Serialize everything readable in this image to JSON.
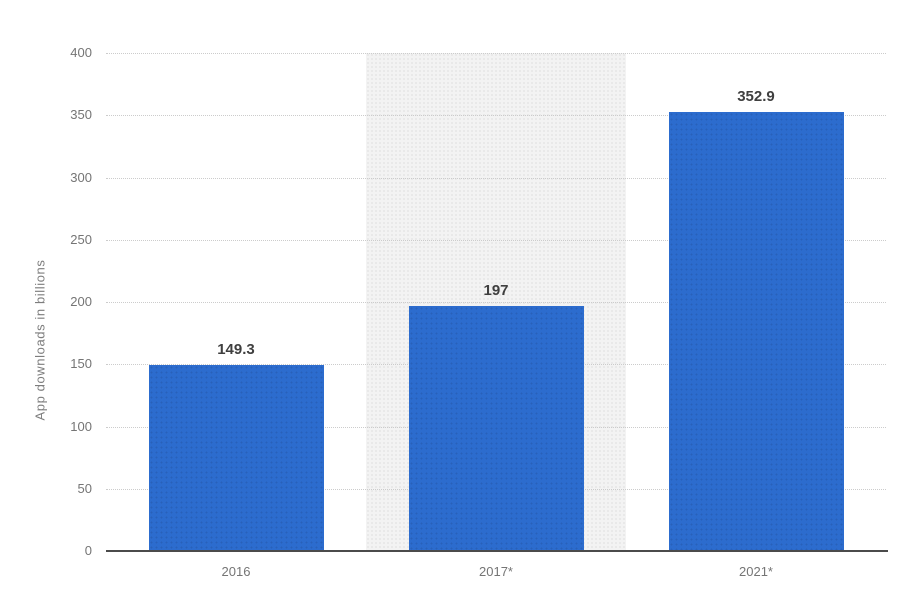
{
  "chart_data": {
    "type": "bar",
    "title": "",
    "categories": [
      "2016",
      "2017*",
      "2021*"
    ],
    "values": [
      149.3,
      197,
      352.9
    ],
    "value_labels": [
      "149.3",
      "197",
      "352.9"
    ],
    "xlabel": "",
    "ylabel": "App downloads in billions",
    "ylim": [
      0,
      400
    ],
    "ytick_step": 50,
    "ytick_labels": [
      "0",
      "50",
      "100",
      "150",
      "200",
      "250",
      "300",
      "350",
      "400"
    ],
    "grid": "horizontal-dotted",
    "legend": "none",
    "highlight_band_category": "2017*",
    "colors": {
      "bar": "#2c6cce",
      "band": "#f3f3f3",
      "gridline": "#cccccc",
      "axis": "#4b4b4b",
      "tick_text": "#757575",
      "value_text": "#3f3f3f",
      "background": "#ffffff"
    }
  }
}
